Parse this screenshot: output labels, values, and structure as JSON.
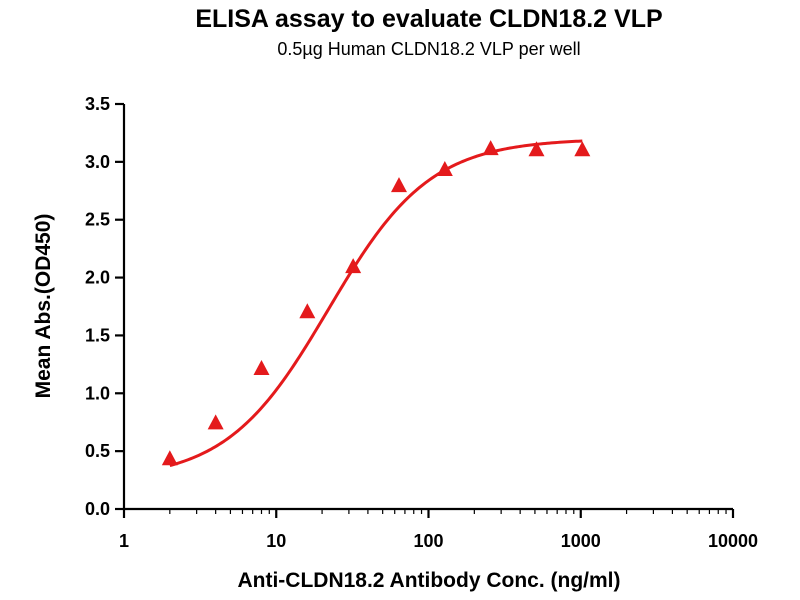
{
  "chart_data": {
    "type": "scatter",
    "title": "ELISA assay to evaluate CLDN18.2 VLP",
    "subtitle": "0.5µg Human CLDN18.2 VLP per well",
    "xlabel": "Anti-CLDN18.2 Antibody Conc. (ng/ml)",
    "ylabel": "Mean Abs.(OD450)",
    "x_scale": "log",
    "xlim": [
      1,
      10000
    ],
    "ylim": [
      0,
      3.5
    ],
    "x_ticks": [
      "1",
      "10",
      "100",
      "1000",
      "10000"
    ],
    "y_ticks": [
      "0.0",
      "0.5",
      "1.0",
      "1.5",
      "2.0",
      "2.5",
      "3.0",
      "3.5"
    ],
    "grid": false,
    "series": [
      {
        "marker": "triangle",
        "color": "#e41a1c",
        "fit": "sigmoidal",
        "x": [
          2,
          4,
          8,
          16,
          32,
          64,
          128,
          256,
          512,
          1024
        ],
        "y": [
          0.43,
          0.74,
          1.21,
          1.7,
          2.09,
          2.79,
          2.93,
          3.11,
          3.1,
          3.1
        ]
      }
    ]
  }
}
